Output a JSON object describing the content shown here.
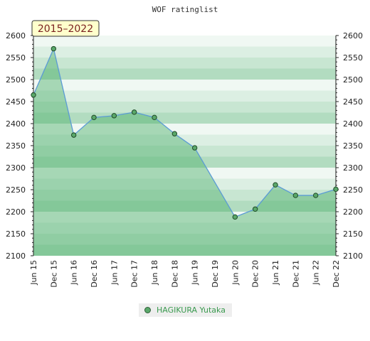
{
  "chart_data": {
    "type": "area",
    "title": "WOF ratinglist",
    "period_badge": "2015–2022",
    "xlabel": "",
    "ylabel": "",
    "x": [
      "Jun 15",
      "Dec 15",
      "Jun 16",
      "Dec 16",
      "Jun 17",
      "Dec 17",
      "Jun 18",
      "Dec 18",
      "Jun 19",
      "Dec 19",
      "Jun 20",
      "Dec 20",
      "Jun 21",
      "Dec 21",
      "Jun 22",
      "Dec 22"
    ],
    "ylim": [
      2100,
      2600
    ],
    "yticks": [
      2100,
      2150,
      2200,
      2250,
      2300,
      2350,
      2400,
      2450,
      2500,
      2550,
      2600
    ],
    "series": [
      {
        "name": "HAGIKURA Yutaka",
        "points": [
          {
            "x": "Jun 15",
            "y": 2465
          },
          {
            "x": "Dec 15",
            "y": 2570
          },
          {
            "x": "Jun 16",
            "y": 2374
          },
          {
            "x": "Dec 16",
            "y": 2414
          },
          {
            "x": "Jun 17",
            "y": 2418
          },
          {
            "x": "Dec 17",
            "y": 2426
          },
          {
            "x": "Jun 18",
            "y": 2414
          },
          {
            "x": "Dec 18",
            "y": 2377
          },
          {
            "x": "Jun 19",
            "y": 2345
          },
          {
            "x": "Jun 20",
            "y": 2188
          },
          {
            "x": "Dec 20",
            "y": 2206
          },
          {
            "x": "Jun 21",
            "y": 2261
          },
          {
            "x": "Dec 21",
            "y": 2237
          },
          {
            "x": "Jun 22",
            "y": 2237
          },
          {
            "x": "Dec 22",
            "y": 2251
          }
        ]
      }
    ],
    "grid": true,
    "right_axis": true,
    "legend_position": "bottom-center",
    "colors": {
      "line": "#5b9bd5",
      "marker": "#5aa86a",
      "band_dark": "#b2dcc0",
      "band_light": "#f0f8f3",
      "fill": "#4caf6a",
      "badge_bg": "#ffffcc"
    }
  }
}
